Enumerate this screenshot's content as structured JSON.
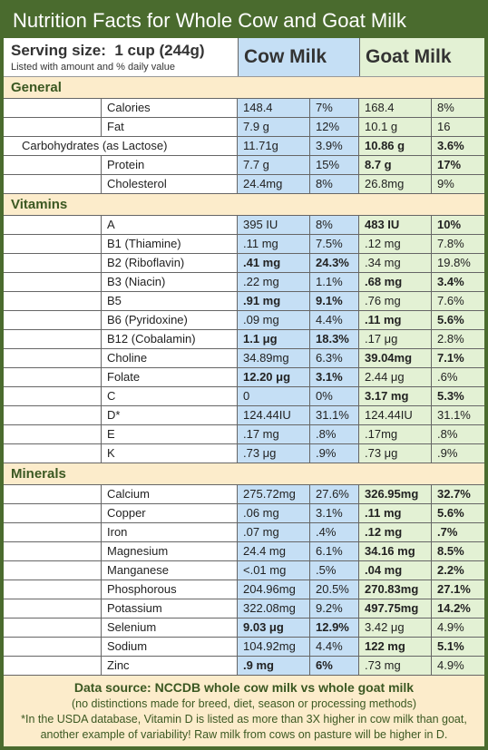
{
  "title": "Nutrition Facts for Whole Cow and Goat Milk",
  "header": {
    "serving_label": "Serving size:",
    "serving_value": "1 cup (244g)",
    "note": "Listed with amount and % daily value",
    "cow": "Cow Milk",
    "goat": "Goat Milk"
  },
  "sections": {
    "general": "General",
    "vitamins": "Vitamins",
    "minerals": "Minerals"
  },
  "general": [
    {
      "name": "Calories",
      "cv": "148.4",
      "cp": "7%",
      "gv": "168.4",
      "gp": "8%"
    },
    {
      "name": "Fat",
      "cv": "7.9 g",
      "cp": "12%",
      "gv": "10.1 g",
      "gp": "16"
    },
    {
      "name": "Carbohydrates (as Lactose)",
      "wide": true,
      "cv": "11.71g",
      "cp": "3.9%",
      "gv": "10.86 g",
      "gp": "3.6%",
      "gb": true
    },
    {
      "name": "Protein",
      "cv": "7.7 g",
      "cp": "15%",
      "gv": "8.7 g",
      "gp": "17%",
      "gb": true
    },
    {
      "name": "Cholesterol",
      "cv": "24.4mg",
      "cp": "8%",
      "gv": "26.8mg",
      "gp": "9%"
    }
  ],
  "vitamins": [
    {
      "name": "A",
      "cv": "395 IU",
      "cp": "8%",
      "gv": "483 IU",
      "gp": "10%",
      "gb": true
    },
    {
      "name": "B1 (Thiamine)",
      "cv": ".11 mg",
      "cp": "7.5%",
      "gv": ".12 mg",
      "gp": "7.8%"
    },
    {
      "name": "B2 (Riboflavin)",
      "cv": ".41 mg",
      "cp": "24.3%",
      "cb": true,
      "gv": ".34 mg",
      "gp": "19.8%"
    },
    {
      "name": "B3 (Niacin)",
      "cv": ".22 mg",
      "cp": "1.1%",
      "gv": ".68 mg",
      "gp": "3.4%",
      "gb": true
    },
    {
      "name": "B5",
      "cv": ".91 mg",
      "cp": "9.1%",
      "cb": true,
      "gv": ".76 mg",
      "gp": "7.6%"
    },
    {
      "name": "B6 (Pyridoxine)",
      "cv": ".09 mg",
      "cp": "4.4%",
      "gv": ".11 mg",
      "gp": "5.6%",
      "gb": true
    },
    {
      "name": "B12 (Cobalamin)",
      "cv": "1.1 μg",
      "cp": "18.3%",
      "cb": true,
      "gv": ".17 μg",
      "gp": "2.8%"
    },
    {
      "name": "Choline",
      "cv": "34.89mg",
      "cp": "6.3%",
      "gv": "39.04mg",
      "gp": "7.1%",
      "gb": true
    },
    {
      "name": "Folate",
      "cv": "12.20 μg",
      "cp": "3.1%",
      "cb": true,
      "gv": "2.44 μg",
      "gp": ".6%"
    },
    {
      "name": "C",
      "cv": "0",
      "cp": "0%",
      "gv": "3.17 mg",
      "gp": "5.3%",
      "gb": true
    },
    {
      "name": "D*",
      "cv": "124.44IU",
      "cp": "31.1%",
      "gv": "124.44IU",
      "gp": "31.1%"
    },
    {
      "name": "E",
      "cv": ".17 mg",
      "cp": ".8%",
      "gv": ".17mg",
      "gp": ".8%"
    },
    {
      "name": "K",
      "cv": ".73 μg",
      "cp": ".9%",
      "gv": ".73 μg",
      "gp": ".9%"
    }
  ],
  "minerals": [
    {
      "name": "Calcium",
      "cv": "275.72mg",
      "cp": "27.6%",
      "gv": "326.95mg",
      "gp": "32.7%",
      "gb": true
    },
    {
      "name": "Copper",
      "cv": ".06 mg",
      "cp": "3.1%",
      "gv": ".11 mg",
      "gp": "5.6%",
      "gb": true
    },
    {
      "name": "Iron",
      "cv": ".07 mg",
      "cp": ".4%",
      "gv": ".12 mg",
      "gp": ".7%",
      "gb": true
    },
    {
      "name": "Magnesium",
      "cv": "24.4 mg",
      "cp": "6.1%",
      "gv": "34.16 mg",
      "gp": "8.5%",
      "gb": true
    },
    {
      "name": "Manganese",
      "cv": "<.01 mg",
      "cp": ".5%",
      "gv": ".04 mg",
      "gp": "2.2%",
      "gb": true
    },
    {
      "name": "Phosphorous",
      "cv": "204.96mg",
      "cp": "20.5%",
      "gv": "270.83mg",
      "gp": "27.1%",
      "gb": true
    },
    {
      "name": "Potassium",
      "cv": "322.08mg",
      "cp": "9.2%",
      "gv": "497.75mg",
      "gp": "14.2%",
      "gb": true
    },
    {
      "name": "Selenium",
      "cv": "9.03 μg",
      "cp": "12.9%",
      "cb": true,
      "gv": "3.42 μg",
      "gp": "4.9%"
    },
    {
      "name": "Sodium",
      "cv": "104.92mg",
      "cp": "4.4%",
      "gv": "122 mg",
      "gp": "5.1%",
      "gb": true
    },
    {
      "name": "Zinc",
      "cv": ".9 mg",
      "cp": "6%",
      "cb": true,
      "gv": ".73 mg",
      "gp": "4.9%"
    }
  ],
  "footer": {
    "source": "Data source: NCCDB whole cow milk vs whole goat milk",
    "note1": "(no distinctions made for breed, diet, season or processing methods)",
    "note2": "*In the USDA database, Vitamin D is listed as more than 3X higher in cow milk than goat,",
    "note3": "another example of variability! Raw milk from cows on pasture will be higher in D."
  },
  "colors": {
    "border": "#4a6b2e",
    "cow_bg": "#c5dff5",
    "goat_bg": "#e3f1d4",
    "section_bg": "#fceccb",
    "section_text": "#3b5822"
  }
}
